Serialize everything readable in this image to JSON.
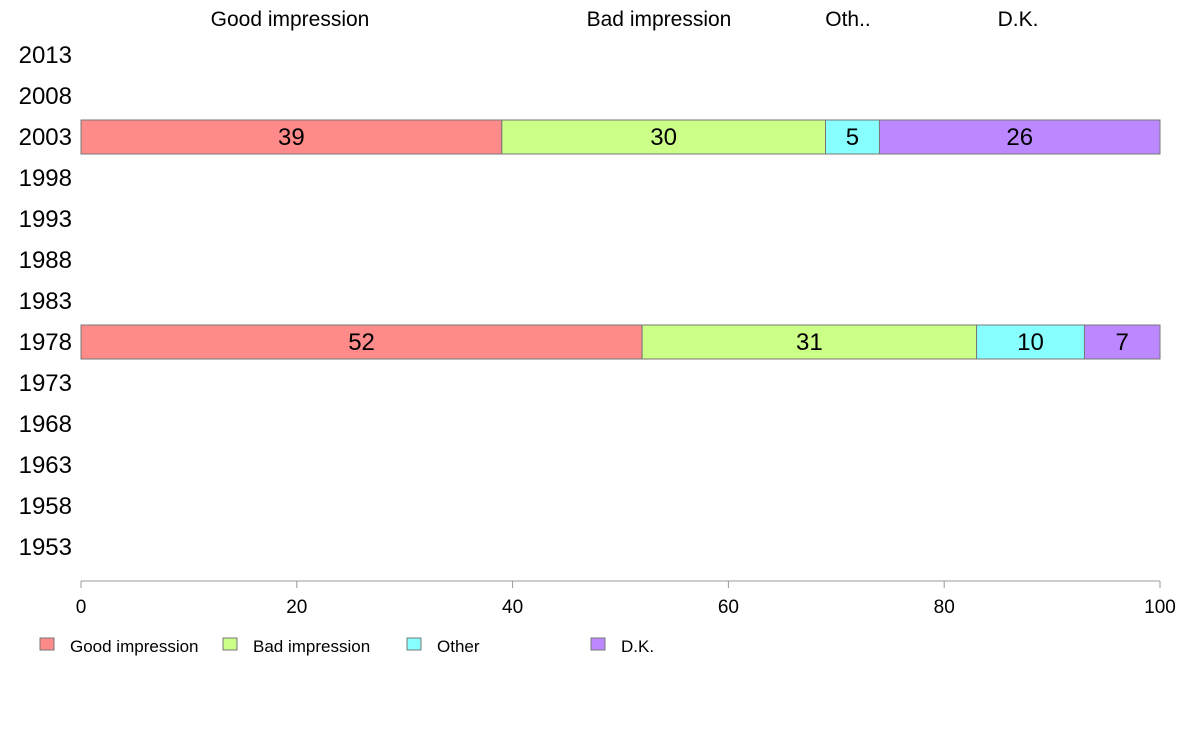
{
  "chart_data": {
    "type": "bar",
    "orientation": "horizontal",
    "stacked": true,
    "xlim": [
      0,
      100
    ],
    "x_ticks": [
      0,
      20,
      40,
      60,
      80,
      100
    ],
    "column_headers": [
      "Good impression",
      "Bad impression",
      "Oth..",
      "D.K."
    ],
    "categories": [
      "2013",
      "2008",
      "2003",
      "1998",
      "1993",
      "1988",
      "1983",
      "1978",
      "1973",
      "1968",
      "1963",
      "1958",
      "1953"
    ],
    "series": [
      {
        "name": "Good impression",
        "color": "#FF8A8A",
        "values": [
          null,
          null,
          39,
          null,
          null,
          null,
          null,
          52,
          null,
          null,
          null,
          null,
          null
        ]
      },
      {
        "name": "Bad impression",
        "color": "#CCFF88",
        "values": [
          null,
          null,
          30,
          null,
          null,
          null,
          null,
          31,
          null,
          null,
          null,
          null,
          null
        ]
      },
      {
        "name": "Other",
        "color": "#88FFFF",
        "values": [
          null,
          null,
          5,
          null,
          null,
          null,
          null,
          10,
          null,
          null,
          null,
          null,
          null
        ]
      },
      {
        "name": "D.K.",
        "color": "#BB88FF",
        "values": [
          null,
          null,
          26,
          null,
          null,
          null,
          null,
          7,
          null,
          null,
          null,
          null,
          null
        ]
      }
    ],
    "legend_position": "bottom-left",
    "grid": false
  }
}
